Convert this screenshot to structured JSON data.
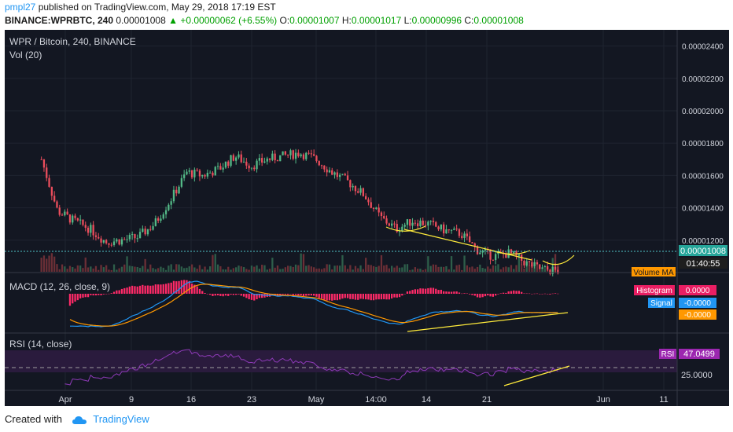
{
  "header": {
    "author": "pmpl27",
    "published": "published on TradingView.com, May 29, 2018 17:19 EST",
    "ticker": "BINANCE:WPRBTC, 240",
    "last": "0.00001008",
    "change_icon": "up-triangle-icon",
    "change": "+0.00000062 (+6.55%)",
    "o_label": "O:",
    "o_value": "0.00001007",
    "h_label": "H:",
    "h_value": "0.00001017",
    "l_label": "L:",
    "l_value": "0.00000996",
    "c_label": "C:",
    "c_value": "0.00001008"
  },
  "chart": {
    "title": "WPR / Bitcoin, 240, BINANCE",
    "vol_label": "Vol (20)",
    "macd_label": "MACD (12, 26, close, 9)",
    "rsi_label": "RSI (14, close)",
    "price_badge": "0.00001008",
    "countdown": "01:40:55",
    "volume_ma_badge": "Volume MA",
    "histogram_badge": "Histogram",
    "histogram_value": "0.0000",
    "signal_badge": "Signal",
    "signal_value": "-0.0000",
    "macd_value": "-0.0000",
    "rsi_badge": "RSI",
    "rsi_value": "47.0499",
    "rsi_level": "25.0000"
  },
  "footer": {
    "created_with": "Created with",
    "brand": "TradingView",
    "logo_icon": "tradingview-cloud-icon"
  },
  "colors": {
    "background": "#131722",
    "up": "#53b987",
    "down": "#eb4d5c",
    "macd": "#2196f3",
    "signal": "#ff9800",
    "rsi": "#9c27b0",
    "trendline": "#ffeb3b",
    "histogram": "#ff2a68"
  },
  "chart_data": {
    "type": "candlestick",
    "symbol": "WPR / Bitcoin",
    "interval": "240",
    "exchange": "BINANCE",
    "x_ticks": [
      "Apr",
      "9",
      "16",
      "23",
      "May",
      "14:00",
      "14",
      "21",
      "Jun",
      "11"
    ],
    "y_ticks": [
      "0.00001200",
      "0.00001400",
      "0.00001600",
      "0.00001800",
      "0.00002000",
      "0.00002200",
      "0.00002400"
    ],
    "ylim": [
      1e-05,
      2.5e-05
    ],
    "price_path": [
      [
        "Mar 31",
        1.7e-05
      ],
      [
        "Apr 1",
        1.38e-05
      ],
      [
        "Apr 3",
        1.32e-05
      ],
      [
        "Apr 5",
        1.27e-05
      ],
      [
        "Apr 6",
        1.19e-05
      ],
      [
        "Apr 9",
        1.2e-05
      ],
      [
        "Apr 11",
        1.22e-05
      ],
      [
        "Apr 13",
        1.3e-05
      ],
      [
        "Apr 15",
        1.45e-05
      ],
      [
        "Apr 17",
        1.62e-05
      ],
      [
        "Apr 19",
        1.6e-05
      ],
      [
        "Apr 21",
        1.64e-05
      ],
      [
        "Apr 23",
        1.72e-05
      ],
      [
        "Apr 25",
        1.66e-05
      ],
      [
        "Apr 27",
        1.7e-05
      ],
      [
        "Apr 29",
        1.72e-05
      ],
      [
        "May 1",
        1.74e-05
      ],
      [
        "May 3",
        1.7e-05
      ],
      [
        "May 5",
        1.62e-05
      ],
      [
        "May 7",
        1.56e-05
      ],
      [
        "May 9",
        1.48e-05
      ],
      [
        "May 11",
        1.34e-05
      ],
      [
        "May 12",
        1.27e-05
      ],
      [
        "May 14",
        1.32e-05
      ],
      [
        "May 16",
        1.3e-05
      ],
      [
        "May 18",
        1.26e-05
      ],
      [
        "May 21",
        1.24e-05
      ],
      [
        "May 23",
        1.14e-05
      ],
      [
        "May 25",
        1.1e-05
      ],
      [
        "May 26",
        1.12e-05
      ],
      [
        "May 27",
        1.06e-05
      ],
      [
        "May 28",
        1.02e-05
      ],
      [
        "May 29",
        1.01e-05
      ]
    ],
    "last_price": 1.008e-05,
    "macd": {
      "fast": 12,
      "slow": 26,
      "signal": 9,
      "histogram": 0.0,
      "signal_value": -0.0,
      "macd_value": -0.0
    },
    "rsi": {
      "period": 14,
      "value": 47.0499,
      "level": 25.0
    },
    "annotations": [
      "rounded-bottom curves on price",
      "rising trendline under MACD",
      "rising trendline under RSI"
    ]
  }
}
